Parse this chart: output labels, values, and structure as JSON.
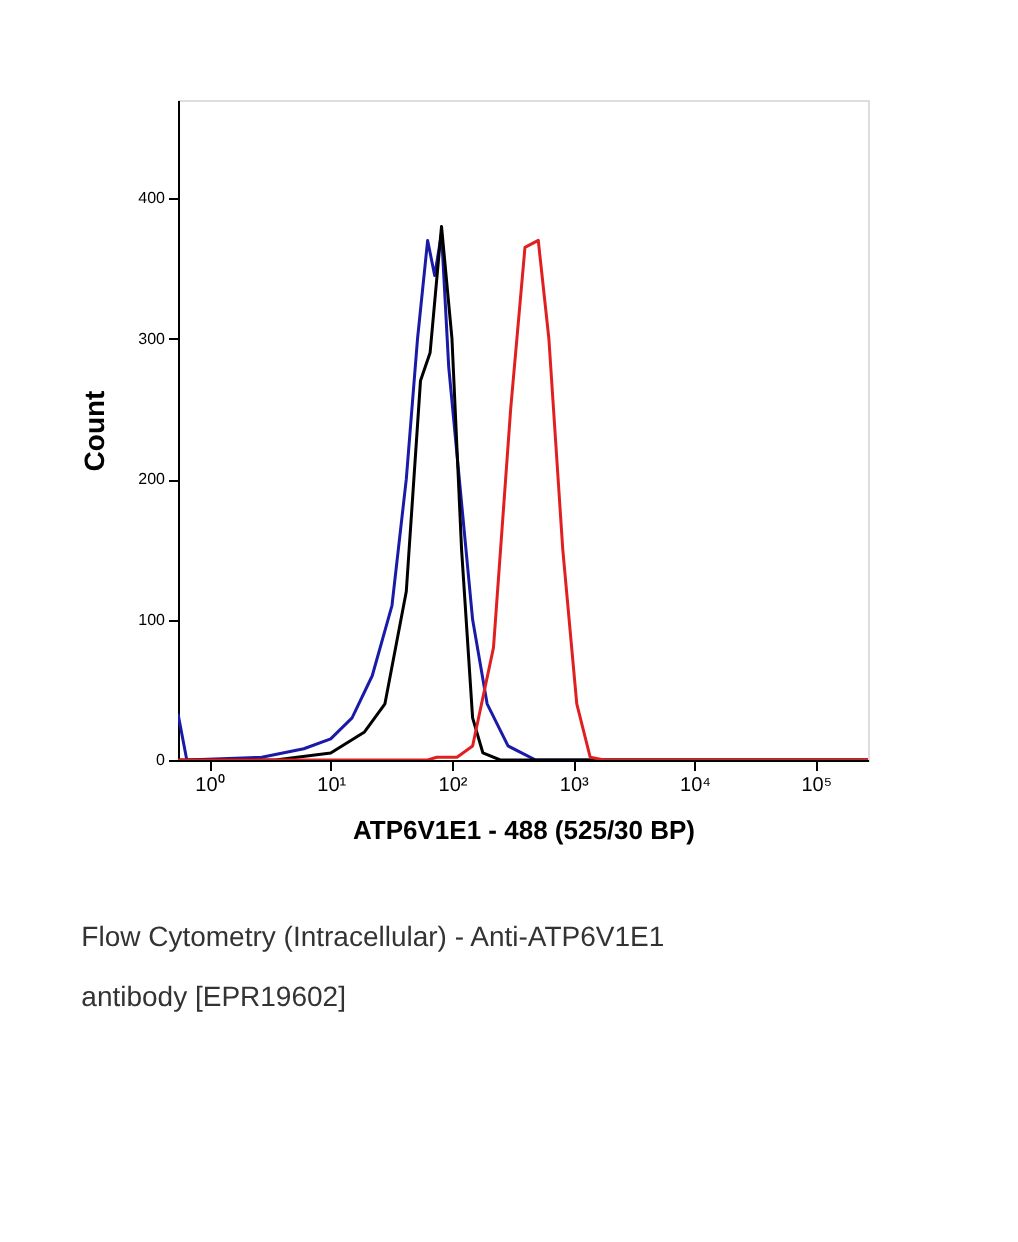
{
  "chart_data": {
    "type": "line",
    "xlabel": "ATP6V1E1 - 488 (525/30 BP)",
    "ylabel": "Count",
    "annotations": [
      "Flow Cytometry (Intracellular) - Anti-ATP6V1E1 antibody [EPR19602]"
    ],
    "log": "x",
    "grid": false,
    "legend": false,
    "marker": "none",
    "line_style": "solid",
    "xlim": [
      0.55,
      270000
    ],
    "xticks": [
      {
        "value": 1,
        "label": "10⁰"
      },
      {
        "value": 10,
        "label": "10¹"
      },
      {
        "value": 100,
        "label": "10²"
      },
      {
        "value": 1000,
        "label": "10³"
      },
      {
        "value": 10000,
        "label": "10⁴"
      },
      {
        "value": 100000,
        "label": "10⁵"
      }
    ],
    "ylim": [
      0,
      470
    ],
    "yticks": [
      0,
      100,
      200,
      300,
      400
    ],
    "series": [
      {
        "color": "#1a1aa8",
        "x": [
          0.55,
          0.65,
          2.7,
          6,
          10,
          15,
          22,
          32,
          42,
          52,
          63,
          72,
          82,
          94,
          115,
          148,
          195,
          290,
          490,
          270000
        ],
        "values": [
          33,
          0,
          2,
          8,
          15,
          30,
          60,
          110,
          200,
          300,
          370,
          345,
          375,
          280,
          200,
          100,
          40,
          10,
          0,
          0
        ]
      },
      {
        "color": "#000000",
        "x": [
          0.55,
          3.5,
          10,
          19,
          28,
          42,
          55,
          66,
          82,
          100,
          120,
          148,
          180,
          250,
          270000
        ],
        "values": [
          0,
          0,
          5,
          20,
          40,
          120,
          270,
          290,
          380,
          300,
          150,
          30,
          5,
          0,
          0
        ]
      },
      {
        "color": "#e02020",
        "x": [
          0.55,
          63,
          75,
          110,
          148,
          220,
          305,
          400,
          515,
          630,
          820,
          1070,
          1380,
          1800,
          270000
        ],
        "values": [
          0,
          0,
          2,
          2,
          10,
          80,
          250,
          365,
          370,
          300,
          150,
          40,
          2,
          0,
          0
        ]
      }
    ]
  }
}
